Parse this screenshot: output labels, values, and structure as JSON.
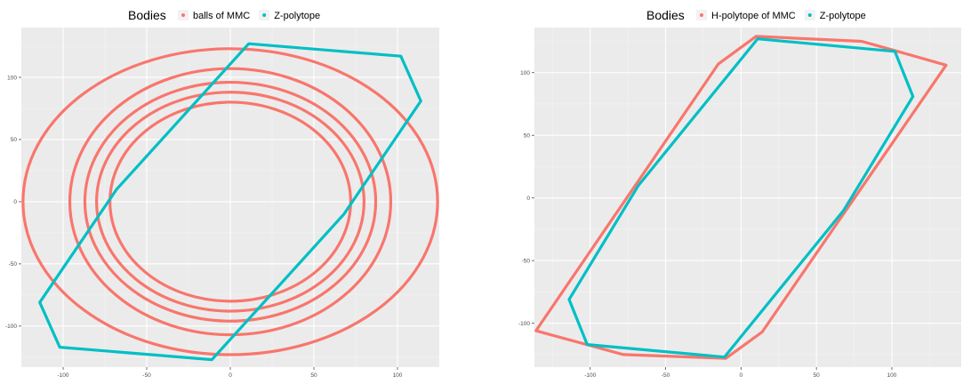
{
  "colors": {
    "panel_bg": "#ebebeb",
    "grid_major": "#ffffff",
    "grid_minor": "#f4f4f4",
    "mmc": "#f8766d",
    "zpoly": "#00bfc4",
    "legend_key_bg": "#f2f2f2",
    "tick": "#4d4d4d"
  },
  "chart_data": [
    {
      "type": "line",
      "legend": {
        "title": "Bodies",
        "position": "top",
        "entries": [
          {
            "label": "balls of MMC",
            "color": "#f8766d"
          },
          {
            "label": "Z-polytope",
            "color": "#00bfc4"
          }
        ]
      },
      "xlim": [
        -125,
        125
      ],
      "ylim": [
        -133,
        140
      ],
      "xticks": [
        -100,
        -50,
        0,
        50,
        100
      ],
      "yticks": [
        -100,
        -50,
        0,
        50,
        100
      ],
      "tick_labels_x": [
        "-100",
        "-50",
        "0",
        "50",
        "100"
      ],
      "tick_labels_y": [
        "-100",
        "-50",
        "0",
        "50",
        "100"
      ],
      "grid": true,
      "series": [
        {
          "name": "balls of MMC",
          "kind": "ellipses",
          "ellipses": [
            {
              "cx": 0,
              "cy": 0,
              "rx": 124,
              "ry": 123
            },
            {
              "cx": 0,
              "cy": 0,
              "rx": 96,
              "ry": 107
            },
            {
              "cx": 0,
              "cy": 0,
              "rx": 87,
              "ry": 96
            },
            {
              "cx": 0,
              "cy": 0,
              "rx": 80,
              "ry": 88
            },
            {
              "cx": 0,
              "cy": 0,
              "rx": 72,
              "ry": 80
            }
          ]
        },
        {
          "name": "Z-polytope",
          "kind": "polygon",
          "points": [
            [
              11,
              127
            ],
            [
              102,
              117
            ],
            [
              114,
              81
            ],
            [
              68,
              -10
            ],
            [
              -11,
              -127
            ],
            [
              -102,
              -117
            ],
            [
              -114,
              -81
            ],
            [
              -68,
              10
            ]
          ]
        }
      ]
    },
    {
      "type": "line",
      "legend": {
        "title": "Bodies",
        "position": "top",
        "entries": [
          {
            "label": "H-polytope of MMC",
            "color": "#f8766d"
          },
          {
            "label": "Z-polytope",
            "color": "#00bfc4"
          }
        ]
      },
      "xlim": [
        -137,
        146
      ],
      "ylim": [
        -135,
        136
      ],
      "xticks": [
        -100,
        -50,
        0,
        50,
        100
      ],
      "yticks": [
        -100,
        -50,
        0,
        50,
        100
      ],
      "tick_labels_x": [
        "-100",
        "-50",
        "0",
        "50",
        "100"
      ],
      "tick_labels_y": [
        "-100",
        "-50",
        "0",
        "50",
        "100"
      ],
      "grid": true,
      "series": [
        {
          "name": "H-polytope of MMC",
          "kind": "polygon",
          "points": [
            [
              10,
              129
            ],
            [
              80,
              125
            ],
            [
              101,
              118
            ],
            [
              136,
              106
            ],
            [
              14,
              -107
            ],
            [
              -10,
              -128
            ],
            [
              -78,
              -125
            ],
            [
              -136,
              -106
            ],
            [
              -15,
              107
            ]
          ]
        },
        {
          "name": "Z-polytope",
          "kind": "polygon",
          "points": [
            [
              11,
              127
            ],
            [
              102,
              117
            ],
            [
              114,
              81
            ],
            [
              68,
              -10
            ],
            [
              -11,
              -127
            ],
            [
              -102,
              -117
            ],
            [
              -114,
              -81
            ],
            [
              -68,
              10
            ]
          ]
        }
      ]
    }
  ]
}
